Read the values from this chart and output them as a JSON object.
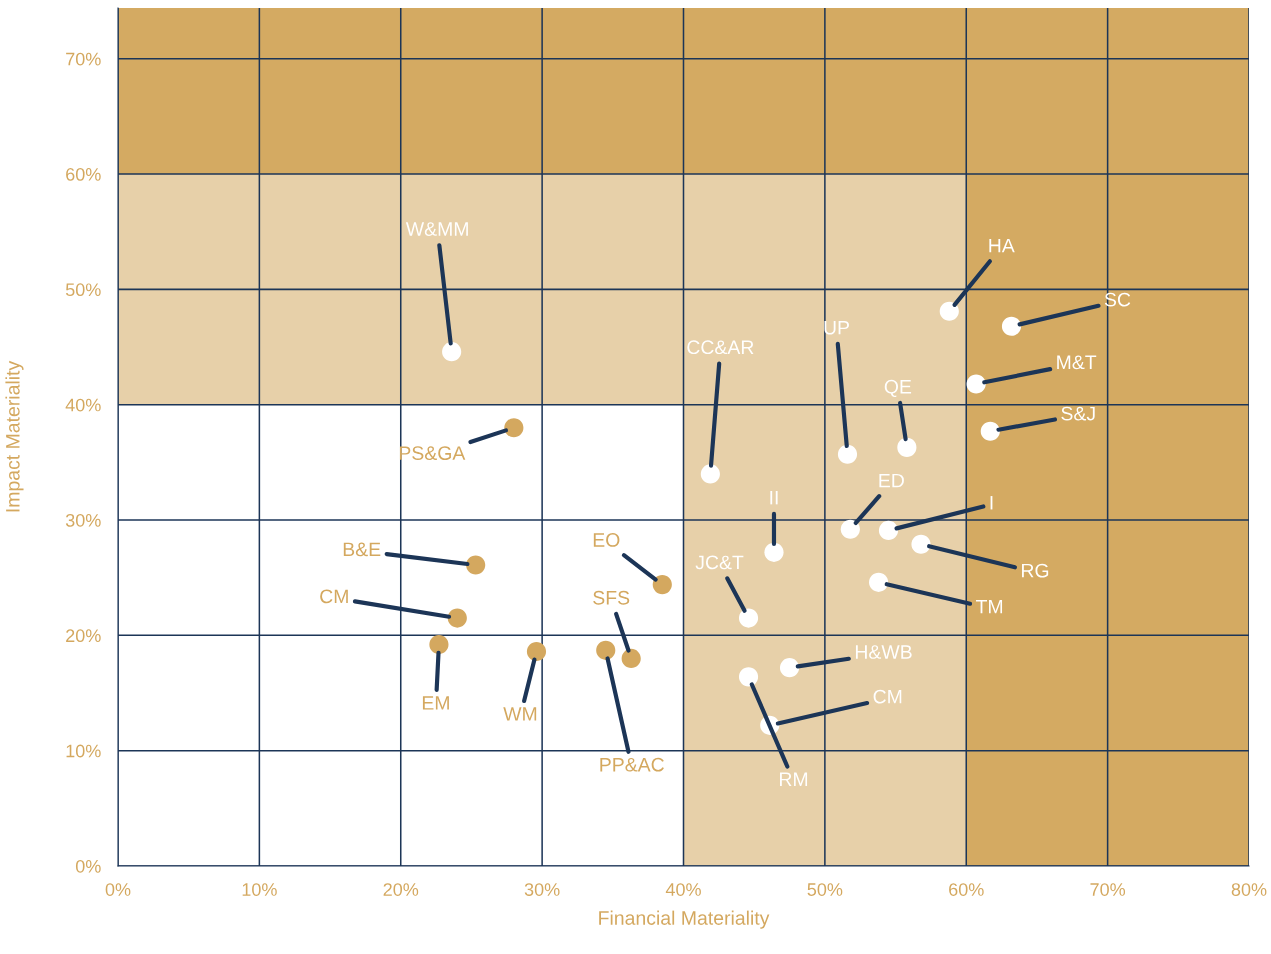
{
  "chart_data": {
    "type": "scatter",
    "xlabel": "Financial Materiality",
    "ylabel": "Impact Materiality",
    "xlim": [
      0,
      80
    ],
    "ylim": [
      0,
      74.4
    ],
    "xticks": [
      {
        "value": 0,
        "label": "0%"
      },
      {
        "value": 10,
        "label": "10%"
      },
      {
        "value": 20,
        "label": "20%"
      },
      {
        "value": 30,
        "label": "30%"
      },
      {
        "value": 40,
        "label": "40%"
      },
      {
        "value": 50,
        "label": "50%"
      },
      {
        "value": 60,
        "label": "60%"
      },
      {
        "value": 70,
        "label": "70%"
      },
      {
        "value": 80,
        "label": "80%"
      }
    ],
    "yticks": [
      {
        "value": 0,
        "label": "0%"
      },
      {
        "value": 10,
        "label": "10%"
      },
      {
        "value": 20,
        "label": "20%"
      },
      {
        "value": 30,
        "label": "30%"
      },
      {
        "value": 40,
        "label": "40%"
      },
      {
        "value": 50,
        "label": "50%"
      },
      {
        "value": 60,
        "label": "60%"
      },
      {
        "value": 70,
        "label": "70%"
      }
    ],
    "grid": true,
    "marker": "circle",
    "bands": [
      {
        "axis": "y",
        "from": 40,
        "to": 60,
        "color": "#e7d0a9"
      },
      {
        "axis": "x",
        "from": 40,
        "to": 60,
        "color": "#e7d0a9"
      },
      {
        "axis": "y",
        "from": 60,
        "to": 74.4,
        "color": "#d4aa62"
      },
      {
        "axis": "x",
        "from": 60,
        "to": 80,
        "color": "#d4aa62"
      }
    ],
    "series": [
      {
        "color": "#ffffff",
        "x": [
          23.6,
          58.8,
          63.2,
          60.7,
          61.7,
          51.6,
          55.8,
          41.9,
          51.8,
          54.5,
          56.8,
          53.8,
          46.4,
          44.6,
          47.5,
          44.6,
          46.1
        ],
        "values": [
          44.6,
          48.1,
          46.8,
          41.8,
          37.7,
          35.7,
          36.3,
          34.0,
          29.2,
          29.1,
          27.9,
          24.6,
          27.2,
          21.5,
          17.2,
          16.4,
          12.2
        ]
      },
      {
        "color": "#d4a85f",
        "x": [
          28.0,
          25.3,
          24.0,
          22.7,
          29.6,
          38.5,
          36.3,
          34.5
        ],
        "values": [
          38.0,
          26.1,
          21.5,
          19.2,
          18.6,
          24.4,
          18.0,
          18.7
        ]
      }
    ],
    "annotations": [
      {
        "text": "W&MM",
        "x": 23.6,
        "y": 44.6
      },
      {
        "text": "HA",
        "x": 58.8,
        "y": 48.1
      },
      {
        "text": "SC",
        "x": 63.2,
        "y": 46.8
      },
      {
        "text": "M&T",
        "x": 60.7,
        "y": 41.8
      },
      {
        "text": "S&J",
        "x": 61.7,
        "y": 37.7
      },
      {
        "text": "UP",
        "x": 51.6,
        "y": 35.7
      },
      {
        "text": "QE",
        "x": 55.8,
        "y": 36.3
      },
      {
        "text": "CC&AR",
        "x": 41.9,
        "y": 34.0
      },
      {
        "text": "ED",
        "x": 51.8,
        "y": 29.2
      },
      {
        "text": "I",
        "x": 54.5,
        "y": 29.1
      },
      {
        "text": "RG",
        "x": 56.8,
        "y": 27.9
      },
      {
        "text": "TM",
        "x": 53.8,
        "y": 24.6
      },
      {
        "text": "II",
        "x": 46.4,
        "y": 27.2
      },
      {
        "text": "JC&T",
        "x": 44.6,
        "y": 21.5
      },
      {
        "text": "H&WB",
        "x": 47.5,
        "y": 17.2
      },
      {
        "text": "RM",
        "x": 44.6,
        "y": 16.4
      },
      {
        "text": "CM",
        "x": 46.1,
        "y": 12.2
      },
      {
        "text": "PS&GA",
        "x": 28.0,
        "y": 38.0
      },
      {
        "text": "B&E",
        "x": 25.3,
        "y": 26.1
      },
      {
        "text": "CM",
        "x": 24.0,
        "y": 21.5
      },
      {
        "text": "EM",
        "x": 22.7,
        "y": 19.2
      },
      {
        "text": "WM",
        "x": 29.6,
        "y": 18.6
      },
      {
        "text": "EO",
        "x": 38.5,
        "y": 24.4
      },
      {
        "text": "SFS",
        "x": 36.3,
        "y": 18.0
      },
      {
        "text": "PP&AC",
        "x": 34.5,
        "y": 18.7
      }
    ]
  }
}
